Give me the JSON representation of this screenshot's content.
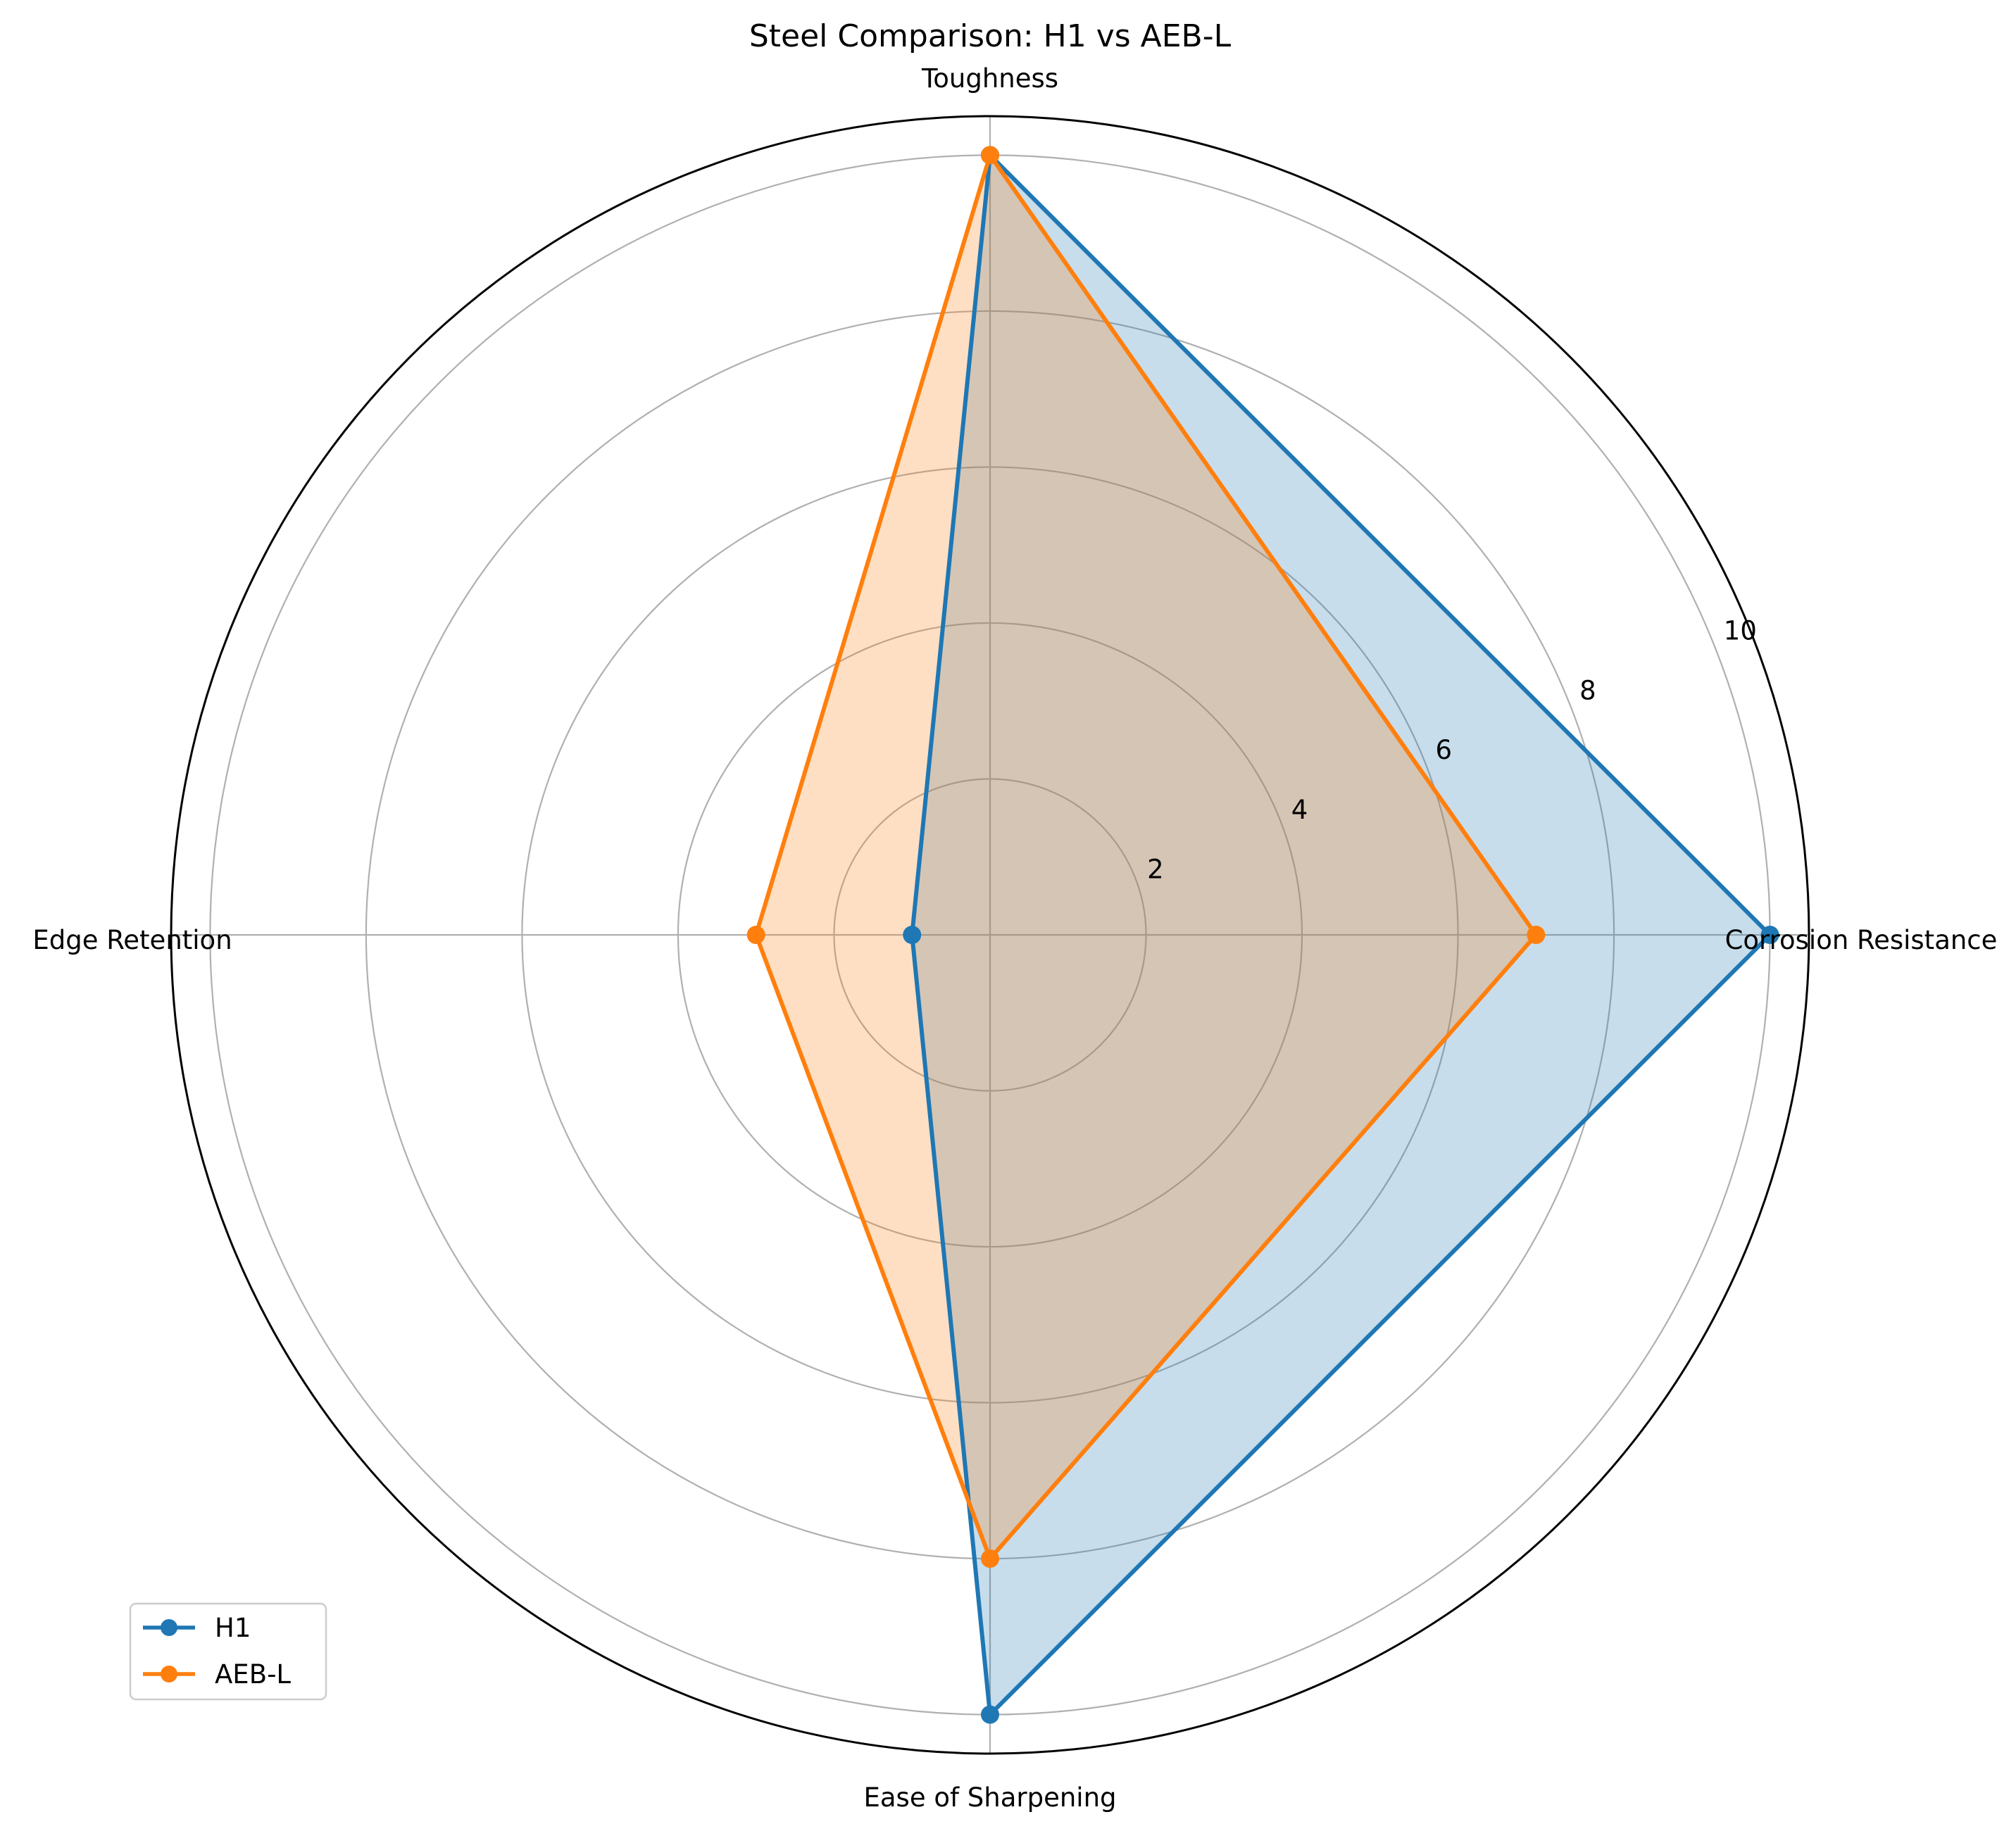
{
  "chart_data": {
    "type": "radar",
    "title": "Steel Comparison: H1 vs AEB-L",
    "categories": [
      "Corrosion Resistance",
      "Toughness",
      "Edge Retention",
      "Ease of Sharpening"
    ],
    "series": [
      {
        "name": "H1",
        "values": [
          10,
          10,
          1,
          10
        ],
        "color": "#1f77b4"
      },
      {
        "name": "AEB-L",
        "values": [
          7,
          10,
          3,
          8
        ],
        "color": "#ff7f0e"
      }
    ],
    "rlim": [
      0,
      10.5
    ],
    "rticks": [
      2,
      4,
      6,
      8,
      10
    ],
    "grid": true,
    "legend_position": "lower-left"
  }
}
